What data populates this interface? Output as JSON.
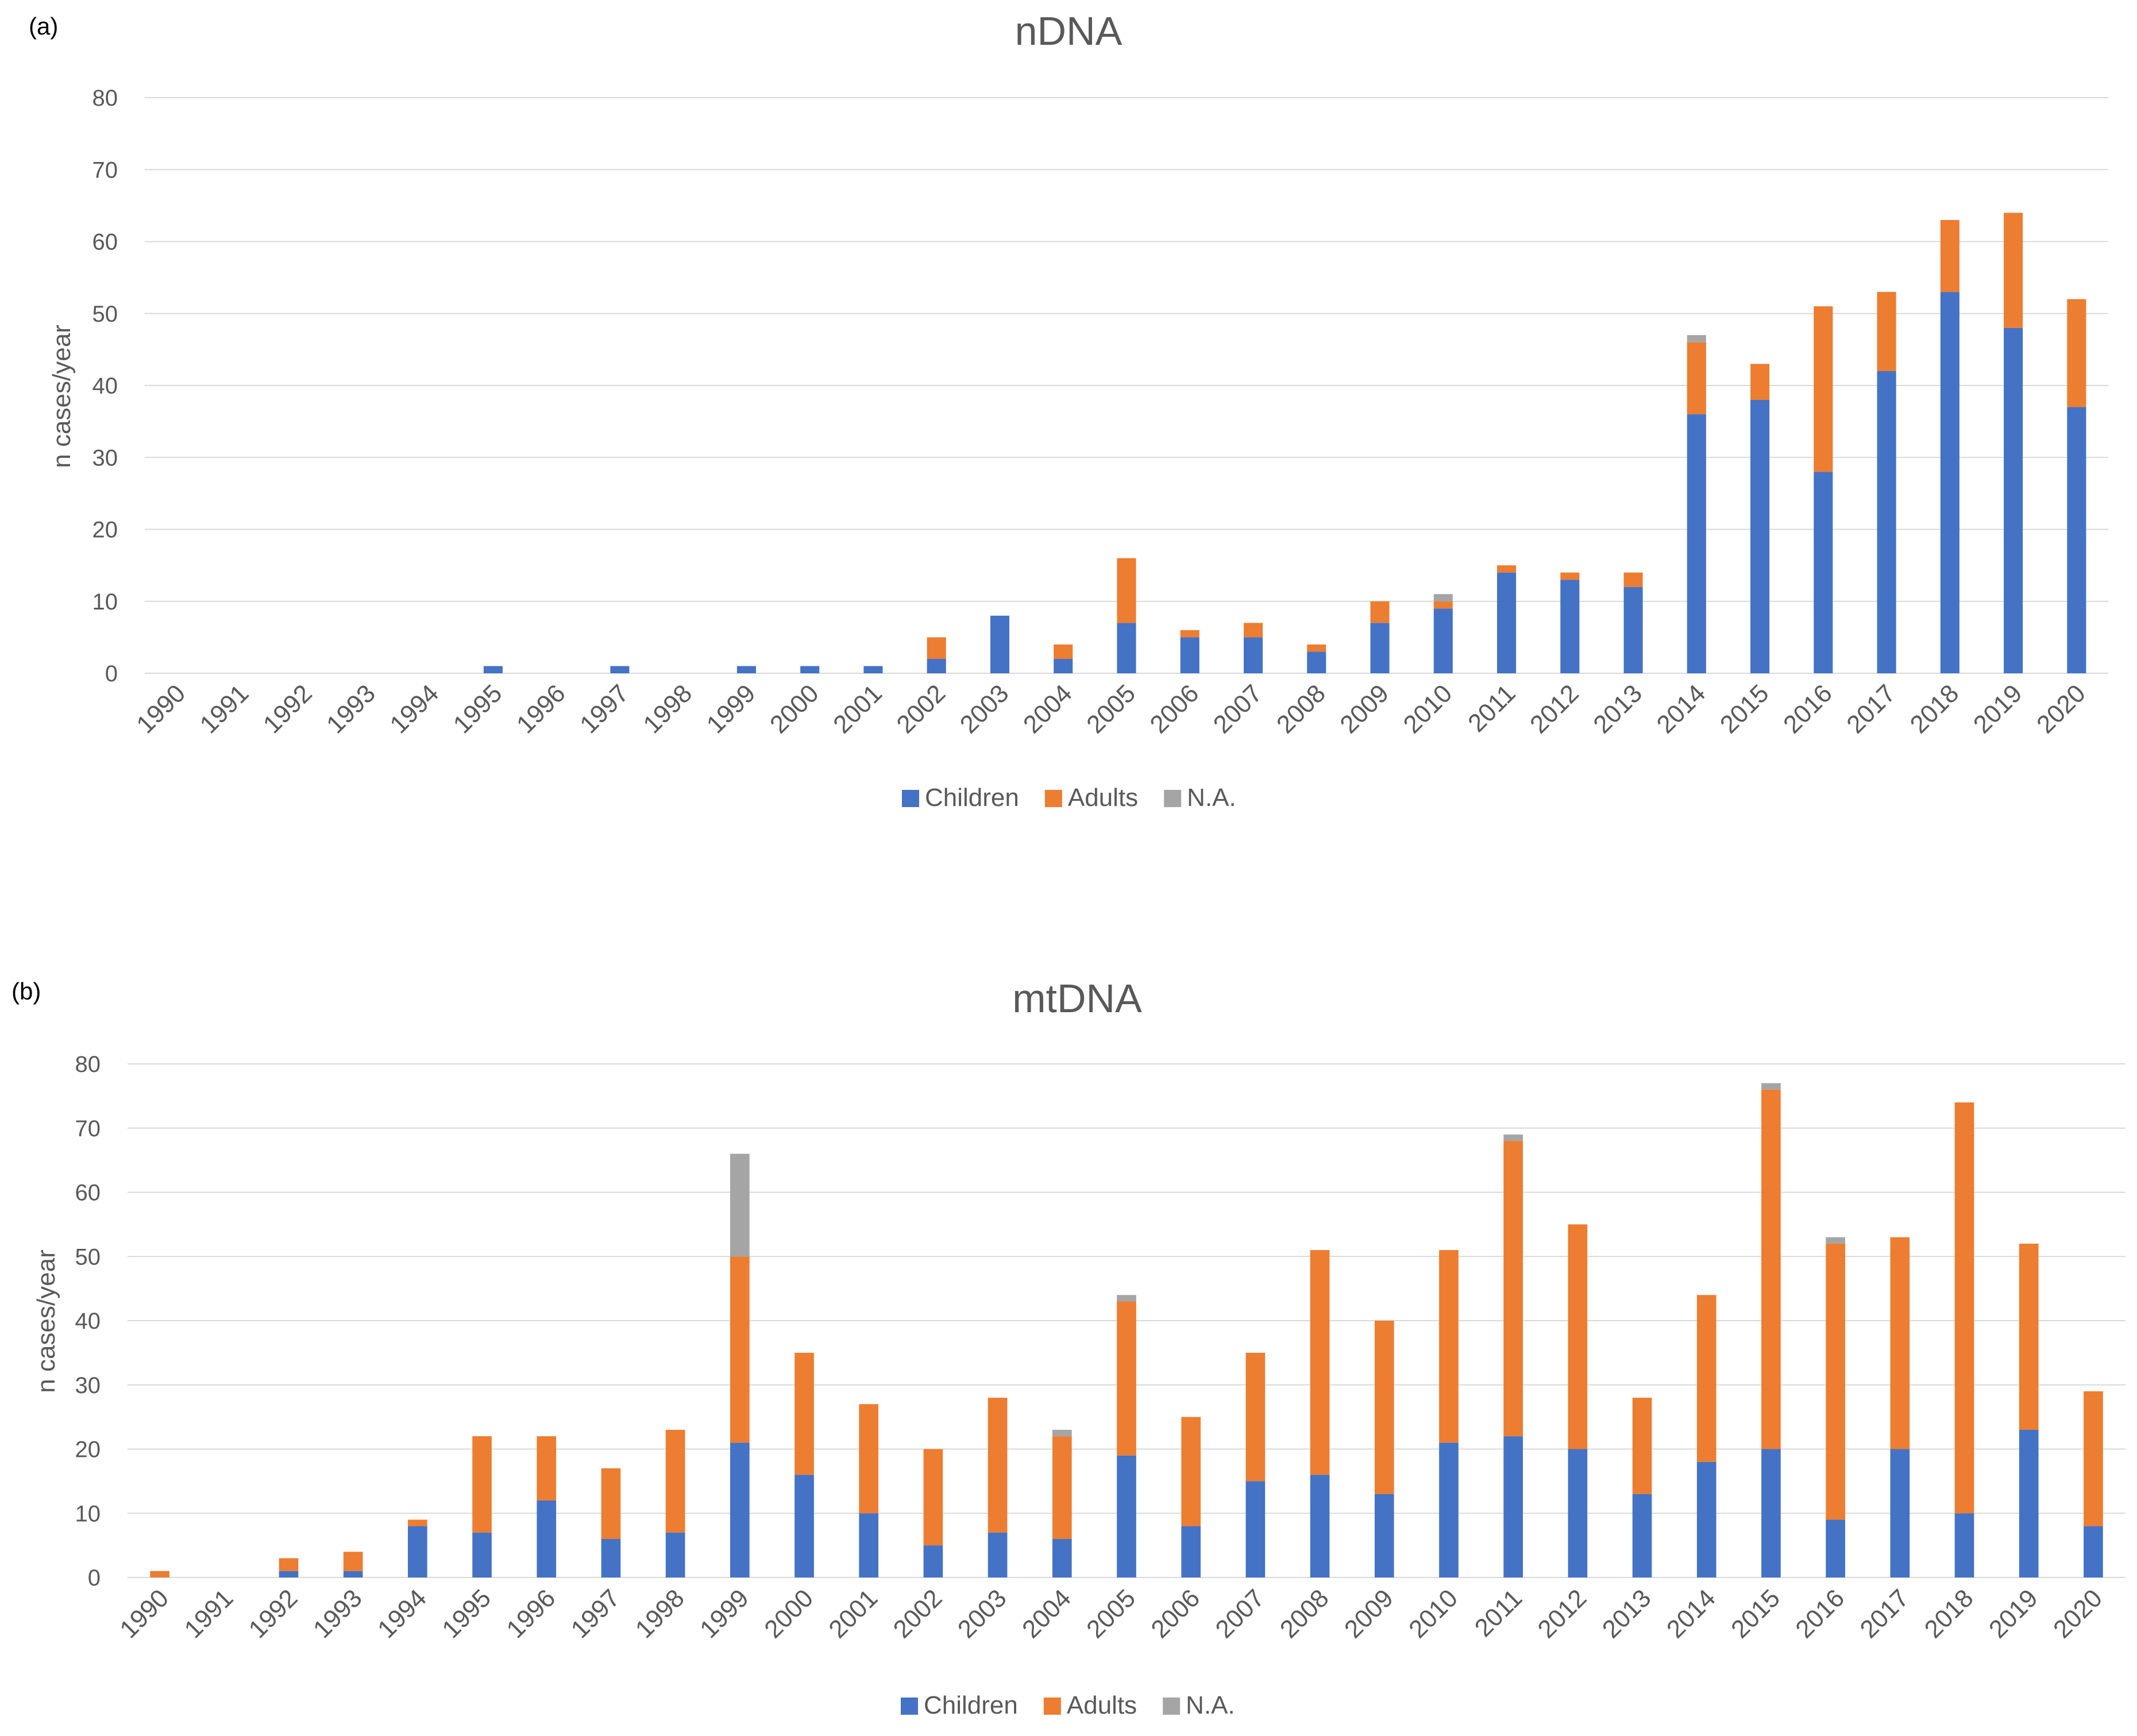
{
  "colors": {
    "children": "#4472C4",
    "adults": "#ED7D31",
    "na": "#A5A5A5",
    "grid": "#D9D9D9",
    "text": "#595959"
  },
  "chart_data": [
    {
      "panel_label": "(a)",
      "type": "bar",
      "stacked": true,
      "title": "nDNA",
      "xlabel": "",
      "ylabel": "n cases/year",
      "ylim": [
        0,
        80
      ],
      "yticks": [
        "0",
        "10",
        "20",
        "30",
        "40",
        "50",
        "60",
        "70",
        "80"
      ],
      "grid": true,
      "legend_position": "bottom",
      "categories": [
        "1990",
        "1991",
        "1992",
        "1993",
        "1994",
        "1995",
        "1996",
        "1997",
        "1998",
        "1999",
        "2000",
        "2001",
        "2002",
        "2003",
        "2004",
        "2005",
        "2006",
        "2007",
        "2008",
        "2009",
        "2010",
        "2011",
        "2012",
        "2013",
        "2014",
        "2015",
        "2016",
        "2017",
        "2018",
        "2019",
        "2020"
      ],
      "series": [
        {
          "name": "Children",
          "color_key": "children",
          "values": [
            0,
            0,
            0,
            0,
            0,
            1,
            0,
            1,
            0,
            1,
            1,
            1,
            2,
            8,
            2,
            7,
            5,
            5,
            3,
            7,
            9,
            14,
            13,
            12,
            36,
            38,
            28,
            42,
            53,
            48,
            37
          ]
        },
        {
          "name": "Adults",
          "color_key": "adults",
          "values": [
            0,
            0,
            0,
            0,
            0,
            0,
            0,
            0,
            0,
            0,
            0,
            0,
            3,
            0,
            2,
            9,
            1,
            2,
            1,
            3,
            1,
            1,
            1,
            2,
            10,
            5,
            23,
            11,
            10,
            16,
            15
          ]
        },
        {
          "name": "N.A.",
          "color_key": "na",
          "values": [
            0,
            0,
            0,
            0,
            0,
            0,
            0,
            0,
            0,
            0,
            0,
            0,
            0,
            0,
            0,
            0,
            0,
            0,
            0,
            0,
            1,
            0,
            0,
            0,
            1,
            0,
            0,
            0,
            0,
            0,
            0
          ]
        }
      ]
    },
    {
      "panel_label": "(b)",
      "type": "bar",
      "stacked": true,
      "title": "mtDNA",
      "xlabel": "",
      "ylabel": "n cases/year",
      "ylim": [
        0,
        80
      ],
      "yticks": [
        "0",
        "10",
        "20",
        "30",
        "40",
        "50",
        "60",
        "70",
        "80"
      ],
      "grid": true,
      "legend_position": "bottom",
      "categories": [
        "1990",
        "1991",
        "1992",
        "1993",
        "1994",
        "1995",
        "1996",
        "1997",
        "1998",
        "1999",
        "2000",
        "2001",
        "2002",
        "2003",
        "2004",
        "2005",
        "2006",
        "2007",
        "2008",
        "2009",
        "2010",
        "2011",
        "2012",
        "2013",
        "2014",
        "2015",
        "2016",
        "2017",
        "2018",
        "2019",
        "2020"
      ],
      "series": [
        {
          "name": "Children",
          "color_key": "children",
          "values": [
            0,
            0,
            1,
            1,
            8,
            7,
            12,
            6,
            7,
            21,
            16,
            10,
            5,
            7,
            6,
            19,
            8,
            15,
            16,
            13,
            21,
            22,
            20,
            13,
            18,
            20,
            9,
            20,
            10,
            23,
            8
          ]
        },
        {
          "name": "Adults",
          "color_key": "adults",
          "values": [
            1,
            0,
            2,
            3,
            1,
            15,
            10,
            11,
            16,
            29,
            19,
            17,
            15,
            21,
            16,
            24,
            17,
            20,
            35,
            27,
            30,
            46,
            35,
            15,
            26,
            56,
            43,
            33,
            64,
            29,
            21
          ]
        },
        {
          "name": "N.A.",
          "color_key": "na",
          "values": [
            0,
            0,
            0,
            0,
            0,
            0,
            0,
            0,
            0,
            16,
            0,
            0,
            0,
            0,
            1,
            1,
            0,
            0,
            0,
            0,
            0,
            1,
            0,
            0,
            0,
            1,
            1,
            0,
            0,
            0,
            0
          ]
        }
      ]
    }
  ]
}
